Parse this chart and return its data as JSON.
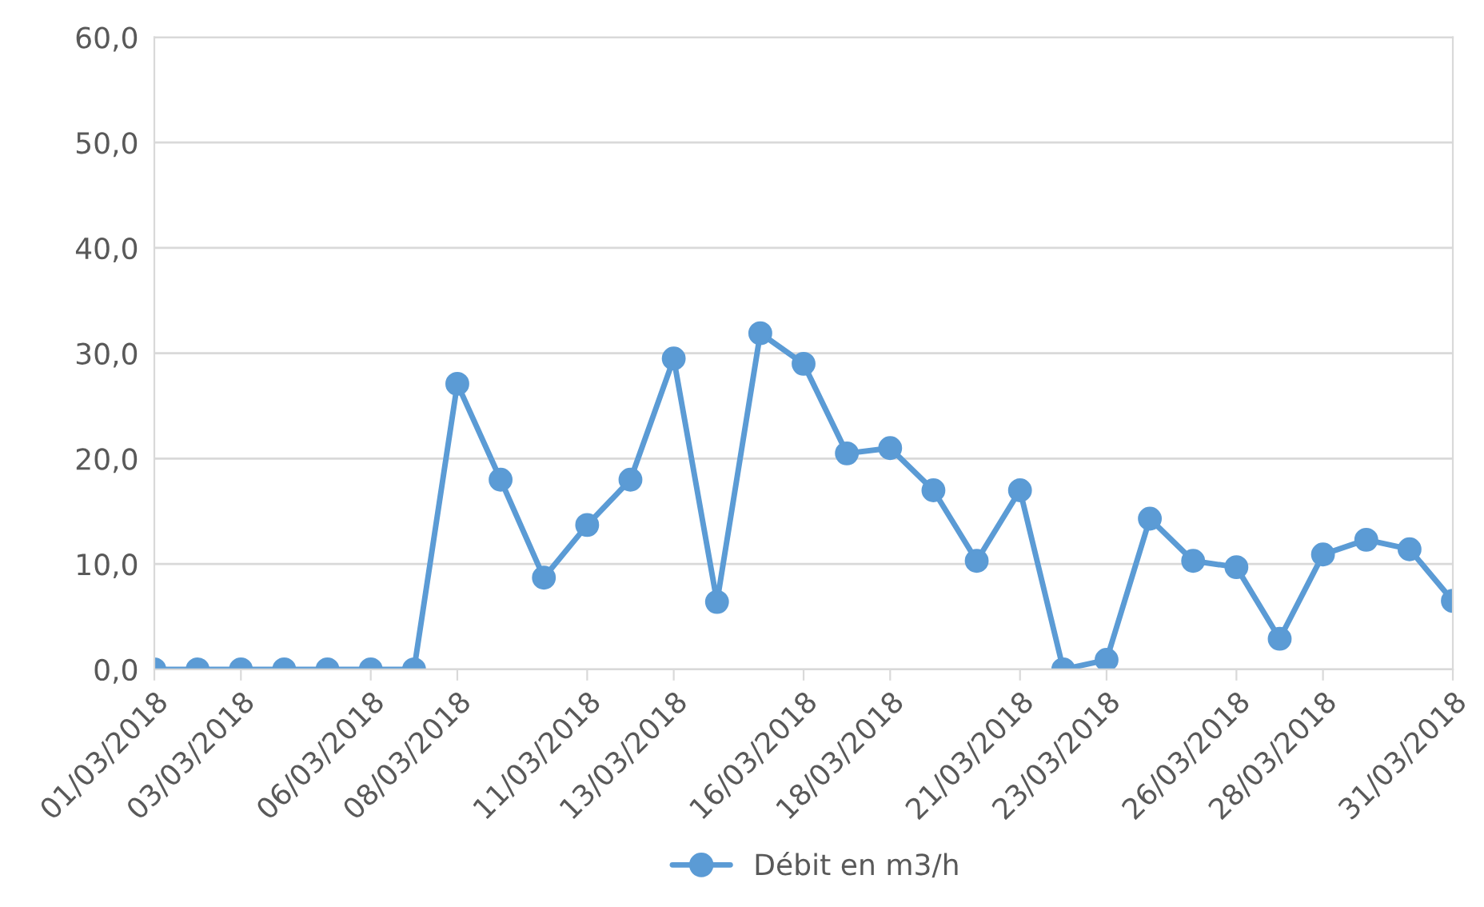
{
  "chart_data": {
    "type": "line",
    "x": [
      "2018-03-01",
      "2018-03-02",
      "2018-03-03",
      "2018-03-04",
      "2018-03-05",
      "2018-03-06",
      "2018-03-07",
      "2018-03-08",
      "2018-03-09",
      "2018-03-10",
      "2018-03-11",
      "2018-03-12",
      "2018-03-13",
      "2018-03-14",
      "2018-03-15",
      "2018-03-16",
      "2018-03-17",
      "2018-03-18",
      "2018-03-19",
      "2018-03-20",
      "2018-03-21",
      "2018-03-22",
      "2018-03-23",
      "2018-03-24",
      "2018-03-25",
      "2018-03-26",
      "2018-03-27",
      "2018-03-28",
      "2018-03-29",
      "2018-03-30",
      "2018-03-31"
    ],
    "series": [
      {
        "name": "Débit en m3/h",
        "color": "#5b9bd5",
        "values": [
          0,
          0,
          0,
          0,
          0,
          0,
          0,
          27.1,
          18.0,
          8.7,
          13.7,
          18.0,
          29.5,
          6.4,
          31.9,
          29.0,
          20.5,
          21.0,
          17.0,
          10.3,
          17.0,
          0,
          0.9,
          14.3,
          10.3,
          9.7,
          2.9,
          10.9,
          12.3,
          11.4,
          6.5
        ]
      }
    ],
    "xlim": [
      "2018-03-01",
      "2018-03-31"
    ],
    "xticks": [
      {
        "value": "2018-03-01",
        "label": "01/03/2018"
      },
      {
        "value": "2018-03-03",
        "label": "03/03/2018"
      },
      {
        "value": "2018-03-06",
        "label": "06/03/2018"
      },
      {
        "value": "2018-03-08",
        "label": "08/03/2018"
      },
      {
        "value": "2018-03-11",
        "label": "11/03/2018"
      },
      {
        "value": "2018-03-13",
        "label": "13/03/2018"
      },
      {
        "value": "2018-03-16",
        "label": "16/03/2018"
      },
      {
        "value": "2018-03-18",
        "label": "18/03/2018"
      },
      {
        "value": "2018-03-21",
        "label": "21/03/2018"
      },
      {
        "value": "2018-03-23",
        "label": "23/03/2018"
      },
      {
        "value": "2018-03-26",
        "label": "26/03/2018"
      },
      {
        "value": "2018-03-28",
        "label": "28/03/2018"
      },
      {
        "value": "2018-03-31",
        "label": "31/03/2018"
      }
    ],
    "ylim": [
      0,
      60
    ],
    "yticks": [
      {
        "value": 0,
        "label": "0,0"
      },
      {
        "value": 10,
        "label": "10,0"
      },
      {
        "value": 20,
        "label": "20,0"
      },
      {
        "value": 30,
        "label": "30,0"
      },
      {
        "value": 40,
        "label": "40,0"
      },
      {
        "value": 50,
        "label": "50,0"
      },
      {
        "value": 60,
        "label": "60,0"
      }
    ],
    "grid": "y",
    "legend": "bottom",
    "marker": "circle",
    "line_style": "solid"
  }
}
